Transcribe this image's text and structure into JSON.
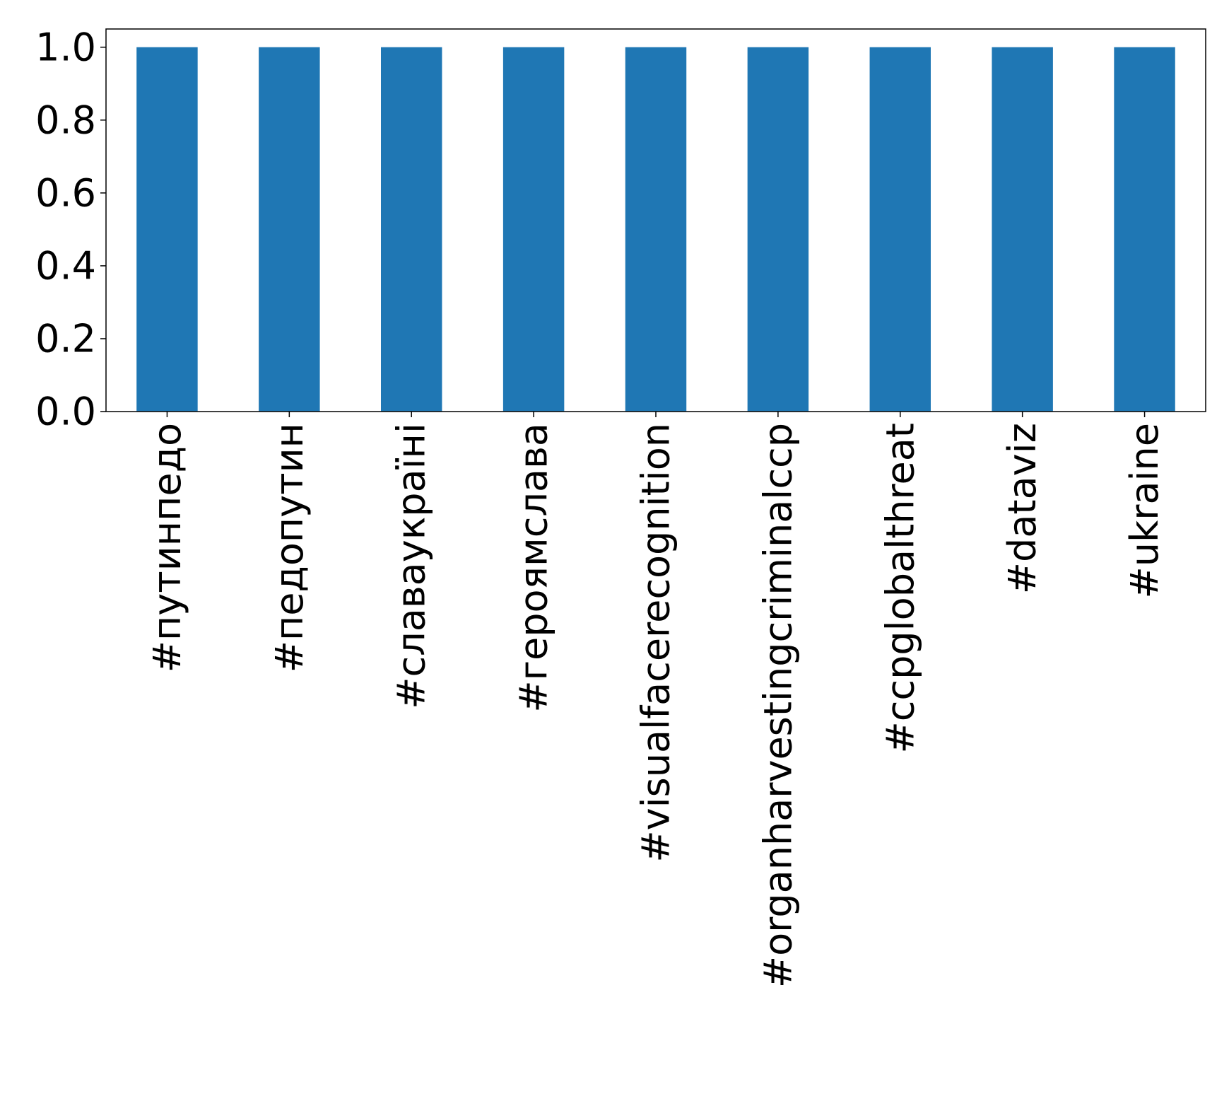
{
  "chart_data": {
    "type": "bar",
    "categories": [
      "#путинпедо",
      "#педопутин",
      "#славаукраїні",
      "#героямслава",
      "#visualfacerecognition",
      "#organharvestingcriminalccp",
      "#ccpglobalthreat",
      "#dataviz",
      "#ukraine"
    ],
    "values": [
      1.0,
      1.0,
      1.0,
      1.0,
      1.0,
      1.0,
      1.0,
      1.0,
      1.0
    ],
    "title": "",
    "xlabel": "",
    "ylabel": "",
    "ylim": [
      0,
      1.05
    ],
    "yticks": [
      "0.0",
      "0.2",
      "0.4",
      "0.6",
      "0.8",
      "1.0"
    ],
    "grid": false,
    "legend": "none",
    "colors": {
      "bar": "#1f77b4",
      "axis": "#000000",
      "background": "#ffffff"
    }
  }
}
